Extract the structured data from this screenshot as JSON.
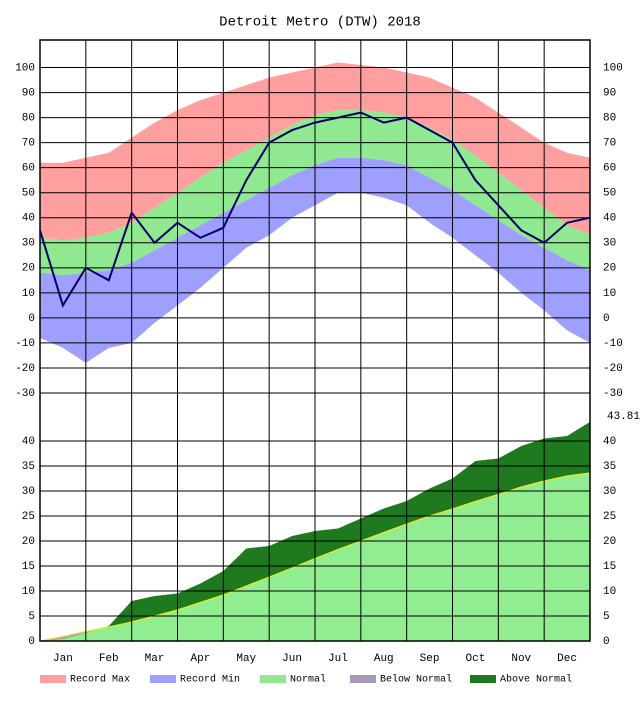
{
  "chart_data": [
    {
      "type": "band",
      "title": "Detroit Metro (DTW) 2018",
      "ylim": [
        -34,
        111
      ],
      "yticks": [
        -30,
        -20,
        -10,
        0,
        10,
        20,
        30,
        40,
        50,
        60,
        70,
        80,
        90,
        100
      ],
      "grid": true,
      "series": [
        {
          "name": "Record Max",
          "color": "#ff9f9f",
          "values": [
            62,
            62,
            64,
            66,
            72,
            78,
            83,
            87,
            90,
            93,
            96,
            98,
            100,
            102,
            101,
            100,
            98,
            96,
            92,
            88,
            82,
            76,
            70,
            66,
            64
          ]
        },
        {
          "name": "Record Min",
          "color": "#9f9fff",
          "values": [
            -8,
            -12,
            -18,
            -12,
            -10,
            -2,
            5,
            12,
            20,
            28,
            33,
            40,
            45,
            50,
            50,
            48,
            45,
            38,
            32,
            25,
            18,
            10,
            3,
            -5,
            -10
          ]
        },
        {
          "name": "Normal",
          "color": "#90e890",
          "values": [
            32,
            31,
            32,
            34,
            38,
            44,
            50,
            56,
            62,
            67,
            72,
            77,
            81,
            83,
            83,
            82,
            80,
            76,
            71,
            65,
            58,
            51,
            44,
            37,
            33
          ],
          "low": [
            18,
            17,
            18,
            19,
            22,
            27,
            32,
            37,
            42,
            47,
            52,
            57,
            61,
            64,
            64,
            63,
            61,
            56,
            51,
            45,
            39,
            33,
            28,
            23,
            19
          ]
        },
        {
          "color": "#000066",
          "values": [
            35,
            5,
            20,
            15,
            42,
            30,
            38,
            32,
            36,
            55,
            70,
            75,
            78,
            80,
            82,
            78,
            80,
            75,
            70,
            55,
            45,
            35,
            30,
            38,
            40
          ]
        }
      ]
    },
    {
      "type": "cumulative-area",
      "categories": [
        null,
        "Jan",
        null,
        "Feb",
        null,
        "Mar",
        null,
        "Apr",
        null,
        "May",
        null,
        "Jun",
        null,
        "Jul",
        null,
        "Aug",
        null,
        "Sep",
        null,
        "Oct",
        null,
        "Nov",
        null,
        "Dec",
        null
      ],
      "ylim": [
        0,
        47.6
      ],
      "yticks": [
        0,
        5,
        10,
        15,
        20,
        25,
        30,
        35,
        40
      ],
      "grid": true,
      "normal": {
        "color": "#90ee90",
        "values": [
          0,
          0.9,
          1.9,
          2.8,
          3.8,
          5.0,
          6.2,
          7.7,
          9.2,
          11.0,
          12.8,
          14.6,
          16.5,
          18.3,
          20.0,
          21.7,
          23.4,
          25.0,
          26.4,
          27.9,
          29.3,
          30.8,
          32.0,
          33.0,
          33.6
        ]
      },
      "observed": {
        "values": [
          0,
          0.4,
          1.6,
          3.0,
          8.0,
          9.0,
          9.5,
          11.5,
          14.0,
          18.5,
          19.0,
          21.0,
          22.0,
          22.5,
          24.5,
          26.5,
          28.0,
          30.5,
          32.5,
          36.0,
          36.5,
          39.0,
          40.5,
          41.0,
          43.81
        ]
      },
      "legend": [
        {
          "name": "Below Normal",
          "color": "#a898b8"
        },
        {
          "name": "Above Normal",
          "color": "#1f7a1f"
        }
      ]
    }
  ]
}
